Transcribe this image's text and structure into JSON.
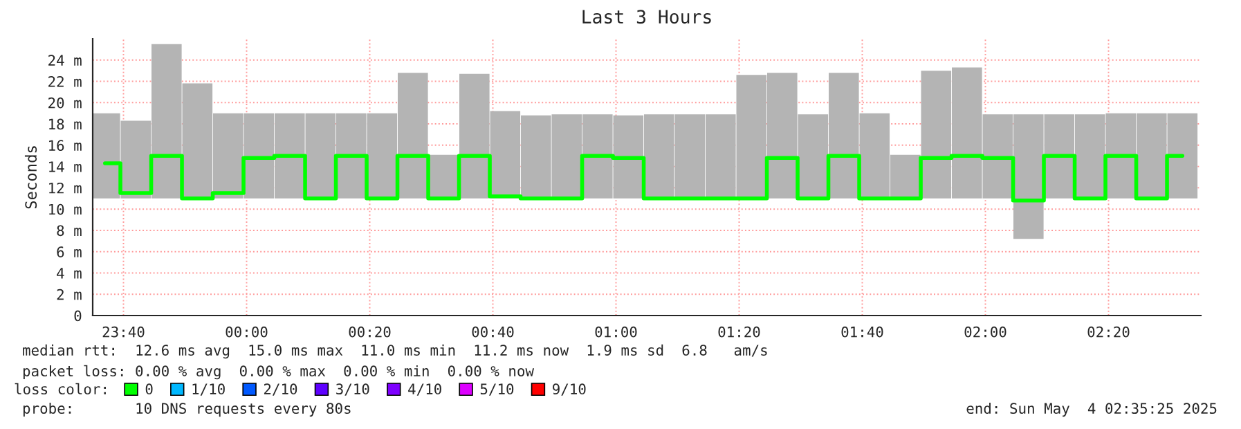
{
  "chart_data": {
    "type": "bar",
    "title": "Last 3 Hours",
    "ylabel": "Seconds",
    "legend_title": "loss color:",
    "legend": "bottom left",
    "grid": true,
    "x": [
      "2025-05-03T23:37",
      "2025-05-03T23:42",
      "2025-05-03T23:47",
      "2025-05-03T23:52",
      "2025-05-03T23:57",
      "2025-05-04T00:02",
      "2025-05-04T00:07",
      "2025-05-04T00:12",
      "2025-05-04T00:17",
      "2025-05-04T00:22",
      "2025-05-04T00:27",
      "2025-05-04T00:32",
      "2025-05-04T00:37",
      "2025-05-04T00:42",
      "2025-05-04T00:47",
      "2025-05-04T00:52",
      "2025-05-04T00:57",
      "2025-05-04T01:02",
      "2025-05-04T01:07",
      "2025-05-04T01:12",
      "2025-05-04T01:17",
      "2025-05-04T01:22",
      "2025-05-04T01:27",
      "2025-05-04T01:32",
      "2025-05-04T01:37",
      "2025-05-04T01:42",
      "2025-05-04T01:47",
      "2025-05-04T01:52",
      "2025-05-04T01:57",
      "2025-05-04T02:02",
      "2025-05-04T02:07",
      "2025-05-04T02:12",
      "2025-05-04T02:17",
      "2025-05-04T02:22",
      "2025-05-04T02:27",
      "2025-05-04T02:32"
    ],
    "series": [
      {
        "color": "#b4b4b4",
        "base": [
          11,
          11,
          11,
          11,
          11,
          11,
          11,
          11,
          11,
          11,
          11,
          11,
          11,
          11,
          11,
          11,
          11,
          11,
          11,
          11,
          11,
          11,
          11,
          11,
          11,
          11,
          11,
          11,
          11,
          11,
          7.2,
          11,
          11,
          11,
          11,
          11
        ],
        "values": [
          8,
          7.3,
          14.5,
          10.8,
          8,
          8,
          8,
          8,
          8,
          8,
          11.8,
          4.1,
          11.7,
          8.2,
          7.8,
          7.9,
          7.9,
          7.8,
          7.9,
          7.9,
          7.9,
          11.6,
          11.8,
          7.9,
          11.8,
          8,
          4.1,
          12,
          12.3,
          7.9,
          11.7,
          7.9,
          7.9,
          8,
          8,
          8
        ]
      },
      {
        "type": "step",
        "name": "0",
        "color": "#00ff00",
        "values": [
          14.3,
          11.5,
          15,
          11,
          11.5,
          14.8,
          15,
          11,
          15,
          11,
          15,
          11,
          15,
          11.2,
          11,
          11,
          15,
          14.8,
          11,
          11,
          11,
          11,
          14.8,
          11,
          15,
          11,
          11,
          14.8,
          15,
          14.8,
          10.8,
          15,
          11,
          15,
          11,
          15
        ]
      },
      {
        "type": "step",
        "name": "1/10",
        "color": "#00b8ff",
        "values": [
          null,
          null,
          null,
          null,
          null,
          null,
          null,
          null,
          null,
          null,
          null,
          null,
          null,
          null,
          null,
          null,
          null,
          null,
          null,
          null,
          null,
          null,
          null,
          null,
          null,
          null,
          null,
          null,
          null,
          null,
          null,
          null,
          null,
          null,
          null,
          null
        ]
      },
      {
        "type": "step",
        "name": "2/10",
        "color": "#0059ff",
        "values": [
          null,
          null,
          null,
          null,
          null,
          null,
          null,
          null,
          null,
          null,
          null,
          null,
          null,
          null,
          null,
          null,
          null,
          null,
          null,
          null,
          null,
          null,
          null,
          null,
          null,
          null,
          null,
          null,
          null,
          null,
          null,
          null,
          null,
          null,
          null,
          null
        ]
      },
      {
        "type": "step",
        "name": "3/10",
        "color": "#5e00ff",
        "values": [
          null,
          null,
          null,
          null,
          null,
          null,
          null,
          null,
          null,
          null,
          null,
          null,
          null,
          null,
          null,
          null,
          null,
          null,
          null,
          null,
          null,
          null,
          null,
          null,
          null,
          null,
          null,
          null,
          null,
          null,
          null,
          null,
          null,
          null,
          null,
          null
        ]
      },
      {
        "type": "step",
        "name": "4/10",
        "color": "#7e00ff",
        "values": [
          null,
          null,
          null,
          null,
          null,
          null,
          null,
          null,
          null,
          null,
          null,
          null,
          null,
          null,
          null,
          null,
          null,
          null,
          null,
          null,
          null,
          null,
          null,
          null,
          null,
          null,
          null,
          null,
          null,
          null,
          null,
          null,
          null,
          null,
          null,
          null
        ]
      },
      {
        "type": "step",
        "name": "5/10",
        "color": "#dd00ff",
        "values": [
          null,
          null,
          null,
          null,
          null,
          null,
          null,
          null,
          null,
          null,
          null,
          null,
          null,
          null,
          null,
          null,
          null,
          null,
          null,
          null,
          null,
          null,
          null,
          null,
          null,
          null,
          null,
          null,
          null,
          null,
          null,
          null,
          null,
          null,
          null,
          null
        ]
      },
      {
        "type": "step",
        "name": "9/10",
        "color": "#ff0000",
        "values": [
          null,
          null,
          null,
          null,
          null,
          null,
          null,
          null,
          null,
          null,
          null,
          null,
          null,
          null,
          null,
          null,
          null,
          null,
          null,
          null,
          null,
          null,
          null,
          null,
          null,
          null,
          null,
          null,
          null,
          null,
          null,
          null,
          null,
          null,
          null,
          null
        ]
      }
    ],
    "xlim": [
      "2025-05-03T23:35",
      "2025-05-04T02:35"
    ],
    "xticks": [
      {
        "value": "2025-05-03T23:40",
        "label": "23:40"
      },
      {
        "value": "2025-05-04T00:00",
        "label": "00:00"
      },
      {
        "value": "2025-05-04T00:20",
        "label": "00:20"
      },
      {
        "value": "2025-05-04T00:40",
        "label": "00:40"
      },
      {
        "value": "2025-05-04T01:00",
        "label": "01:00"
      },
      {
        "value": "2025-05-04T01:20",
        "label": "01:20"
      },
      {
        "value": "2025-05-04T01:40",
        "label": "01:40"
      },
      {
        "value": "2025-05-04T02:00",
        "label": "02:00"
      },
      {
        "value": "2025-05-04T02:20",
        "label": "02:20"
      }
    ],
    "ylim": [
      0,
      26
    ],
    "yticks": [
      0,
      {
        "value": 2,
        "label": "2 m"
      },
      {
        "value": 4,
        "label": "4 m"
      },
      {
        "value": 6,
        "label": "6 m"
      },
      {
        "value": 8,
        "label": "8 m"
      },
      {
        "value": 10,
        "label": "10 m"
      },
      {
        "value": 12,
        "label": "12 m"
      },
      {
        "value": 14,
        "label": "14 m"
      },
      {
        "value": 16,
        "label": "16 m"
      },
      {
        "value": 18,
        "label": "18 m"
      },
      {
        "value": 20,
        "label": "20 m"
      },
      {
        "value": 22,
        "label": "22 m"
      },
      {
        "value": 24,
        "label": "24 m"
      }
    ],
    "annotations": [
      "median rtt:  12.6 ms avg  15.0 ms max  11.0 ms min  11.2 ms now  1.9 ms sd  6.8   am/s",
      "packet loss: 0.00 % avg  0.00 % max  0.00 % min  0.00 % now",
      "probe:       10 DNS requests every 80s",
      "end: Sun May  4 02:35:25 2025"
    ]
  }
}
